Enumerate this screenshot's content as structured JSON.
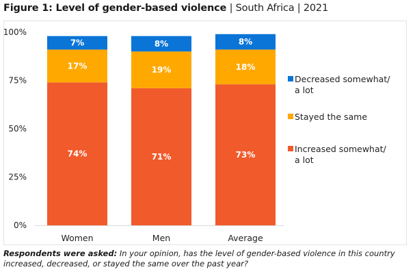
{
  "figure": {
    "title_bold": "Figure 1: Level of gender-based violence",
    "title_rest": " | South Africa | 2021",
    "footnote_bold": "Respondents were asked:",
    "footnote_text": " In your opinion, has the level of gender-based violence in this country increased, decreased, or stayed the same over the past year?"
  },
  "chart_data": {
    "type": "bar",
    "stacked": true,
    "title": "Figure 1: Level of gender-based violence | South Africa | 2021",
    "xlabel": "",
    "ylabel": "",
    "categories": [
      "Women",
      "Men",
      "Average"
    ],
    "ylim": [
      0,
      100
    ],
    "yticks": [
      0,
      25,
      50,
      75,
      100
    ],
    "ytick_labels": [
      "0%",
      "25%",
      "50%",
      "75%",
      "100%"
    ],
    "legend_position": "right",
    "series": [
      {
        "name": "Increased somewhat/ a lot",
        "legend_lines": [
          "Increased somewhat/",
          "a lot"
        ],
        "color": "#f15a2b",
        "values": [
          74,
          71,
          73
        ],
        "labels": [
          "74%",
          "71%",
          "73%"
        ]
      },
      {
        "name": "Stayed the same",
        "legend_lines": [
          "Stayed the same"
        ],
        "color": "#ffa800",
        "values": [
          17,
          19,
          18
        ],
        "labels": [
          "17%",
          "19%",
          "18%"
        ]
      },
      {
        "name": "Decreased somewhat/ a lot",
        "legend_lines": [
          "Decreased somewhat/",
          "a lot"
        ],
        "color": "#0a75d6",
        "values": [
          7,
          8,
          8
        ],
        "labels": [
          "7%",
          "8%",
          "8%"
        ]
      }
    ],
    "legend_order": [
      2,
      1,
      0
    ]
  }
}
